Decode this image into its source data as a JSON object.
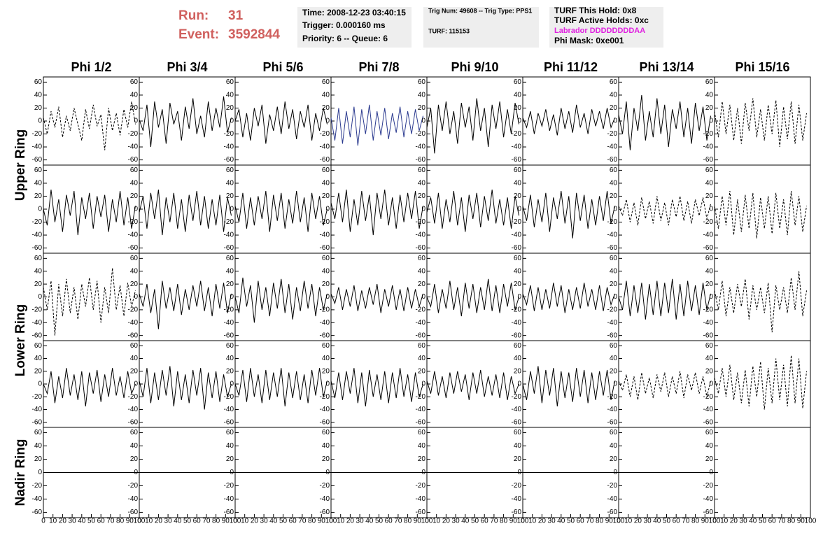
{
  "header": {
    "run_label": "Run:",
    "run": "31",
    "event_label": "Event:",
    "event": "3592844"
  },
  "info": {
    "time": "Time: 2008-12-23 03:40:15",
    "trigger": "Trigger: 0.000160 ms",
    "priority": "Priority: 6 -- Queue: 6",
    "trig_num": "Trig Num: 49608 -- Trig Type: PPS1",
    "turf": "TURF: 115153",
    "turf_hold": "TURF This Hold: 0x8",
    "turf_active": "TURF Active Holds: 0xc",
    "labrador": "Labrador DDDDDDDDAA",
    "phi_mask": "Phi Mask: 0xe001"
  },
  "chart_data": {
    "type": "line",
    "columns": [
      "Phi 1/2",
      "Phi 3/4",
      "Phi 5/6",
      "Phi 7/8",
      "Phi 9/10",
      "Phi 11/12",
      "Phi 13/14",
      "Phi 15/16"
    ],
    "row_labels": [
      "Upper Ring",
      "Lower Ring",
      "Nadir Ring"
    ],
    "ylim": [
      -68,
      68
    ],
    "yticks": [
      60,
      40,
      20,
      0,
      -20,
      -40,
      -60
    ],
    "xlim": [
      0,
      100
    ],
    "xticks": [
      0,
      10,
      20,
      30,
      40,
      50,
      60,
      70,
      80,
      90,
      100
    ],
    "x": [
      0,
      4,
      8,
      12,
      16,
      20,
      24,
      28,
      32,
      36,
      40,
      44,
      48,
      52,
      56,
      60,
      64,
      68,
      72,
      76,
      80,
      84,
      88,
      92,
      96
    ],
    "panels": [
      [
        {
          "color": "#000000",
          "dash": true,
          "values": [
            5,
            -20,
            15,
            -10,
            22,
            -25,
            8,
            -15,
            20,
            -5,
            -30,
            18,
            -12,
            25,
            -8,
            10,
            -45,
            20,
            -15,
            12,
            -22,
            18,
            -10,
            30,
            -5
          ]
        },
        {
          "color": "#000000",
          "dash": false,
          "values": [
            2,
            -15,
            25,
            -40,
            30,
            -10,
            18,
            -35,
            28,
            -5,
            15,
            -30,
            22,
            -12,
            35,
            -20,
            8,
            -25,
            30,
            -15,
            20,
            -10,
            38,
            -18,
            5
          ]
        },
        {
          "color": "#000000",
          "dash": false,
          "values": [
            0,
            18,
            -25,
            12,
            -30,
            20,
            -8,
            25,
            -35,
            10,
            -15,
            22,
            -20,
            30,
            -12,
            18,
            -28,
            15,
            -10,
            25,
            -30,
            12,
            -15,
            20,
            -5
          ]
        },
        {
          "color": "#2b3a8f",
          "dash": false,
          "values": [
            5,
            -30,
            20,
            -35,
            15,
            -25,
            22,
            -38,
            18,
            -20,
            25,
            -30,
            15,
            -22,
            20,
            -28,
            12,
            -18,
            22,
            -25,
            15,
            -20,
            18,
            -15,
            8
          ]
        },
        {
          "color": "#000000",
          "dash": false,
          "values": [
            -10,
            20,
            -50,
            25,
            -15,
            30,
            -20,
            15,
            -35,
            28,
            -10,
            22,
            -30,
            35,
            -15,
            20,
            -40,
            25,
            -12,
            30,
            -25,
            18,
            -20,
            28,
            -5
          ]
        },
        {
          "color": "#000000",
          "dash": false,
          "values": [
            5,
            -10,
            15,
            -20,
            12,
            -8,
            18,
            -15,
            10,
            -22,
            20,
            -12,
            15,
            -18,
            25,
            -10,
            12,
            -20,
            18,
            -8,
            15,
            -12,
            20,
            -10,
            5
          ]
        },
        {
          "color": "#000000",
          "dash": false,
          "values": [
            10,
            -20,
            30,
            -45,
            20,
            -15,
            40,
            -30,
            15,
            -25,
            35,
            -20,
            25,
            -40,
            18,
            -12,
            30,
            -25,
            20,
            -35,
            28,
            -15,
            22,
            -30,
            8
          ]
        },
        {
          "color": "#000000",
          "dash": true,
          "values": [
            15,
            -25,
            30,
            -20,
            25,
            -30,
            20,
            -35,
            28,
            -15,
            35,
            -25,
            18,
            -30,
            25,
            -20,
            32,
            -40,
            22,
            -28,
            30,
            -35,
            25,
            -30,
            12
          ]
        }
      ],
      [
        {
          "color": "#000000",
          "dash": false,
          "values": [
            0,
            -25,
            30,
            -20,
            15,
            -35,
            22,
            -10,
            28,
            -40,
            18,
            -15,
            25,
            -30,
            20,
            -12,
            22,
            -35,
            15,
            -20,
            28,
            -25,
            18,
            -30,
            5
          ]
        },
        {
          "color": "#000000",
          "dash": false,
          "values": [
            -5,
            20,
            -30,
            25,
            -15,
            30,
            -40,
            18,
            -20,
            25,
            -30,
            15,
            -35,
            22,
            -18,
            28,
            -25,
            20,
            -30,
            15,
            -25,
            22,
            -35,
            18,
            -10
          ]
        },
        {
          "color": "#000000",
          "dash": false,
          "values": [
            5,
            -20,
            25,
            -30,
            18,
            -25,
            20,
            -15,
            28,
            -35,
            22,
            -18,
            25,
            -30,
            15,
            -22,
            28,
            -20,
            18,
            -35,
            25,
            -15,
            20,
            -25,
            0
          ]
        },
        {
          "color": "#000000",
          "dash": false,
          "values": [
            10,
            -15,
            25,
            -20,
            30,
            -35,
            15,
            -25,
            28,
            -18,
            22,
            -40,
            25,
            -15,
            30,
            -25,
            18,
            -30,
            22,
            -20,
            25,
            -15,
            28,
            -30,
            5
          ]
        },
        {
          "color": "#000000",
          "dash": false,
          "values": [
            -5,
            18,
            -22,
            25,
            -30,
            15,
            -20,
            28,
            -25,
            18,
            -35,
            22,
            -15,
            25,
            -28,
            20,
            -18,
            30,
            -22,
            15,
            -25,
            18,
            -30,
            20,
            -10
          ]
        },
        {
          "color": "#000000",
          "dash": false,
          "values": [
            5,
            -18,
            22,
            -28,
            15,
            -20,
            25,
            -35,
            18,
            -15,
            28,
            -22,
            20,
            -45,
            25,
            -18,
            22,
            -30,
            15,
            -25,
            20,
            -18,
            28,
            -22,
            5
          ]
        },
        {
          "color": "#000000",
          "dash": true,
          "values": [
            5,
            -10,
            15,
            -20,
            10,
            -25,
            18,
            -15,
            12,
            -22,
            20,
            -18,
            10,
            -25,
            15,
            -12,
            20,
            -18,
            12,
            -22,
            15,
            -10,
            18,
            -15,
            8
          ]
        },
        {
          "color": "#000000",
          "dash": true,
          "values": [
            5,
            -30,
            20,
            -25,
            28,
            -40,
            15,
            -35,
            22,
            -30,
            25,
            -45,
            18,
            -30,
            20,
            -38,
            25,
            -30,
            15,
            -40,
            28,
            -25,
            20,
            -35,
            5
          ]
        }
      ],
      [
        {
          "color": "#000000",
          "dash": true,
          "values": [
            15,
            -20,
            25,
            -60,
            20,
            -30,
            28,
            -25,
            15,
            -35,
            20,
            -15,
            30,
            -20,
            25,
            -40,
            15,
            -25,
            45,
            -20,
            18,
            -30,
            22,
            -15,
            10
          ]
        },
        {
          "color": "#000000",
          "dash": false,
          "values": [
            5,
            -15,
            20,
            -25,
            12,
            -50,
            25,
            -18,
            15,
            -22,
            20,
            -28,
            12,
            -20,
            18,
            -15,
            25,
            -22,
            15,
            -30,
            20,
            -18,
            22,
            -25,
            5
          ]
        },
        {
          "color": "#000000",
          "dash": false,
          "values": [
            0,
            -25,
            30,
            -15,
            18,
            -40,
            25,
            -20,
            15,
            -30,
            22,
            -18,
            28,
            -25,
            20,
            -35,
            15,
            -22,
            25,
            -18,
            20,
            -30,
            15,
            -20,
            5
          ]
        },
        {
          "color": "#000000",
          "dash": false,
          "values": [
            5,
            -10,
            15,
            -20,
            12,
            -15,
            18,
            -22,
            10,
            -18,
            15,
            -12,
            20,
            -25,
            12,
            -15,
            18,
            -20,
            12,
            -22,
            15,
            -18,
            12,
            -15,
            5
          ]
        },
        {
          "color": "#000000",
          "dash": false,
          "values": [
            0,
            -15,
            20,
            -25,
            12,
            -18,
            25,
            -20,
            15,
            -30,
            22,
            -18,
            20,
            -25,
            15,
            -20,
            28,
            -22,
            18,
            -25,
            20,
            -15,
            22,
            -20,
            0
          ]
        },
        {
          "color": "#000000",
          "dash": false,
          "values": [
            5,
            -12,
            18,
            -22,
            15,
            -20,
            12,
            -18,
            22,
            -15,
            18,
            -25,
            12,
            -20,
            15,
            -18,
            22,
            -15,
            12,
            -20,
            18,
            -22,
            15,
            -12,
            5
          ]
        },
        {
          "color": "#000000",
          "dash": false,
          "values": [
            0,
            -20,
            25,
            -30,
            18,
            -25,
            22,
            -35,
            20,
            -28,
            25,
            -30,
            22,
            -25,
            28,
            -35,
            20,
            -30,
            25,
            -22,
            18,
            -28,
            22,
            -20,
            5
          ]
        },
        {
          "color": "#000000",
          "dash": true,
          "values": [
            10,
            -20,
            25,
            -30,
            15,
            -25,
            20,
            -15,
            28,
            -35,
            18,
            -20,
            15,
            -25,
            22,
            -55,
            18,
            -20,
            15,
            -25,
            30,
            -20,
            40,
            -30,
            10
          ]
        }
      ],
      [
        {
          "color": "#000000",
          "dash": false,
          "values": [
            0,
            -15,
            20,
            -30,
            12,
            -22,
            25,
            -18,
            15,
            -25,
            20,
            -35,
            18,
            -15,
            22,
            -28,
            15,
            -20,
            25,
            -18,
            12,
            -22,
            20,
            -15,
            0
          ]
        },
        {
          "color": "#000000",
          "dash": false,
          "values": [
            5,
            -20,
            25,
            -30,
            18,
            -25,
            22,
            -18,
            28,
            -35,
            20,
            -25,
            15,
            -30,
            22,
            -18,
            25,
            -40,
            18,
            -22,
            20,
            -28,
            15,
            -20,
            0
          ]
        },
        {
          "color": "#000000",
          "dash": false,
          "values": [
            0,
            -18,
            22,
            -28,
            25,
            -20,
            15,
            -30,
            22,
            -25,
            18,
            -20,
            25,
            -35,
            18,
            -22,
            20,
            -25,
            15,
            -30,
            22,
            -18,
            25,
            -20,
            5
          ]
        },
        {
          "color": "#000000",
          "dash": false,
          "values": [
            5,
            -22,
            18,
            -25,
            20,
            -15,
            25,
            -30,
            18,
            -35,
            22,
            -20,
            15,
            -25,
            20,
            -30,
            18,
            -22,
            25,
            -20,
            15,
            -28,
            18,
            -20,
            0
          ]
        },
        {
          "color": "#000000",
          "dash": false,
          "values": [
            5,
            -15,
            20,
            -18,
            12,
            -22,
            18,
            -15,
            20,
            -12,
            15,
            -25,
            18,
            -15,
            22,
            -20,
            12,
            -18,
            15,
            -22,
            18,
            -25,
            12,
            -15,
            0
          ]
        },
        {
          "color": "#000000",
          "dash": false,
          "values": [
            0,
            -25,
            20,
            -15,
            28,
            -30,
            22,
            -18,
            25,
            -35,
            20,
            -22,
            18,
            -28,
            25,
            -20,
            22,
            -30,
            18,
            -25,
            20,
            -18,
            22,
            -25,
            5
          ]
        },
        {
          "color": "#000000",
          "dash": true,
          "values": [
            5,
            -10,
            15,
            -20,
            12,
            -25,
            18,
            -15,
            10,
            -22,
            15,
            -12,
            18,
            -20,
            12,
            -15,
            20,
            -22,
            15,
            -10,
            18,
            -15,
            12,
            -20,
            5
          ]
        },
        {
          "color": "#000000",
          "dash": true,
          "values": [
            10,
            -15,
            25,
            -20,
            30,
            -25,
            18,
            -30,
            22,
            -35,
            28,
            -20,
            35,
            -40,
            25,
            -30,
            40,
            -25,
            30,
            -35,
            45,
            -30,
            40,
            -38,
            20
          ]
        }
      ],
      [
        {
          "color": "#000000",
          "dash": false,
          "x": [
            0,
            100
          ],
          "values": [
            0,
            0
          ]
        },
        {
          "color": "#000000",
          "dash": false,
          "x": [
            0,
            100
          ],
          "values": [
            0,
            0
          ]
        },
        {
          "color": "#000000",
          "dash": false,
          "x": [
            0,
            100
          ],
          "values": [
            0,
            0
          ]
        },
        {
          "color": "#000000",
          "dash": false,
          "x": [
            0,
            100
          ],
          "values": [
            0,
            0
          ]
        },
        {
          "color": "#000000",
          "dash": false,
          "x": [
            0,
            100
          ],
          "values": [
            0,
            0
          ]
        },
        {
          "color": "#000000",
          "dash": false,
          "x": [
            0,
            100
          ],
          "values": [
            0,
            0
          ]
        },
        {
          "color": "#000000",
          "dash": false,
          "x": [
            0,
            100
          ],
          "values": [
            0,
            0
          ]
        },
        null
      ]
    ]
  }
}
